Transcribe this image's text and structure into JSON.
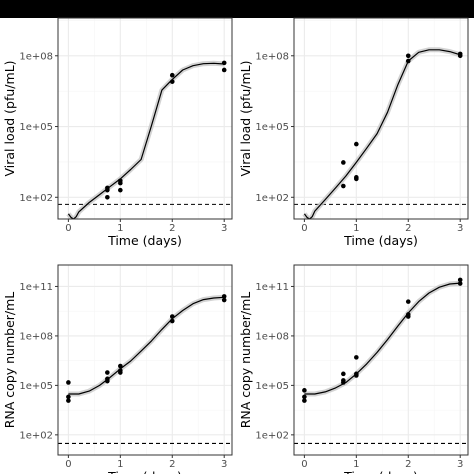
{
  "colors": {
    "top_bar": "#000000",
    "panel_background": "#ffffff",
    "grid_major": "#ebebeb",
    "grid_minor": "#f5f5f5",
    "panel_border": "#333333",
    "points": "#000000",
    "fit_line": "#000000",
    "ribbon": "#c8c8c8",
    "threshold": "#000000"
  },
  "chart_data": [
    {
      "type": "scatter",
      "xlabel": "Time (days)",
      "ylabel": "Viral load (pfu/mL)",
      "log_y": true,
      "xlim": [
        -0.2,
        3.15
      ],
      "ylim": [
        12,
        4000000000.0
      ],
      "x_ticks": [
        0,
        1,
        2,
        3
      ],
      "y_ticks": [
        {
          "value": 100,
          "label": "1e+02"
        },
        {
          "value": 100000,
          "label": "1e+05"
        },
        {
          "value": 100000000,
          "label": "1e+08"
        }
      ],
      "grid": true,
      "threshold": 50,
      "points": [
        [
          0.75,
          250
        ],
        [
          0.75,
          200
        ],
        [
          0.75,
          100
        ],
        [
          1.0,
          500
        ],
        [
          1.0,
          400
        ],
        [
          1.0,
          200
        ],
        [
          2.0,
          15000000.0
        ],
        [
          2.0,
          8000000.0
        ],
        [
          3.0,
          50000000.0
        ],
        [
          3.0,
          25000000.0
        ]
      ],
      "fit": [
        [
          0.0,
          20
        ],
        [
          0.05,
          14
        ],
        [
          0.1,
          12
        ],
        [
          0.15,
          15
        ],
        [
          0.2,
          24
        ],
        [
          0.4,
          60
        ],
        [
          0.6,
          130
        ],
        [
          0.8,
          280
        ],
        [
          1.0,
          600
        ],
        [
          1.2,
          1500
        ],
        [
          1.4,
          4000
        ],
        [
          1.6,
          110000.0
        ],
        [
          1.8,
          3500000.0
        ],
        [
          2.0,
          10000000.0
        ],
        [
          2.2,
          25000000.0
        ],
        [
          2.4,
          38000000.0
        ],
        [
          2.6,
          46000000.0
        ],
        [
          2.8,
          48000000.0
        ],
        [
          3.0,
          45000000.0
        ]
      ]
    },
    {
      "type": "scatter",
      "xlabel": "Time (days)",
      "ylabel": "Viral load (pfu/mL)",
      "log_y": true,
      "xlim": [
        -0.2,
        3.15
      ],
      "ylim": [
        12,
        4000000000.0
      ],
      "x_ticks": [
        0,
        1,
        2,
        3
      ],
      "y_ticks": [
        {
          "value": 100,
          "label": "1e+02"
        },
        {
          "value": 100000,
          "label": "1e+05"
        },
        {
          "value": 100000000,
          "label": "1e+08"
        }
      ],
      "grid": true,
      "threshold": 50,
      "points": [
        [
          0.75,
          3000
        ],
        [
          0.75,
          300
        ],
        [
          1.0,
          18000
        ],
        [
          1.0,
          700
        ],
        [
          1.0,
          600
        ],
        [
          2.0,
          100000000.0
        ],
        [
          2.0,
          60000000.0
        ],
        [
          3.0,
          120000000.0
        ],
        [
          3.0,
          100000000.0
        ]
      ],
      "fit": [
        [
          0.0,
          20
        ],
        [
          0.05,
          14
        ],
        [
          0.1,
          12
        ],
        [
          0.15,
          15
        ],
        [
          0.2,
          26
        ],
        [
          0.4,
          80
        ],
        [
          0.6,
          250
        ],
        [
          0.8,
          800
        ],
        [
          1.0,
          3000
        ],
        [
          1.2,
          12000.0
        ],
        [
          1.4,
          50000.0
        ],
        [
          1.6,
          400000.0
        ],
        [
          1.8,
          6000000.0
        ],
        [
          2.0,
          60000000.0
        ],
        [
          2.2,
          140000000.0
        ],
        [
          2.4,
          180000000.0
        ],
        [
          2.6,
          180000000.0
        ],
        [
          2.8,
          150000000.0
        ],
        [
          3.0,
          110000000.0
        ]
      ]
    },
    {
      "type": "scatter",
      "xlabel": "Time (days)",
      "ylabel": "RNA copy number/mL",
      "log_y": true,
      "xlim": [
        -0.2,
        3.15
      ],
      "ylim": [
        6,
        2000000000000.0
      ],
      "x_ticks": [
        0,
        1,
        2,
        3
      ],
      "y_ticks": [
        {
          "value": 100,
          "label": "1e+02"
        },
        {
          "value": 100000,
          "label": "1e+05"
        },
        {
          "value": 100000000,
          "label": "1e+08"
        },
        {
          "value": 100000000000,
          "label": "1e+11"
        }
      ],
      "grid": true,
      "threshold": 30,
      "points": [
        [
          0.0,
          150000
        ],
        [
          0.0,
          20000
        ],
        [
          0.0,
          12000
        ],
        [
          0.75,
          600000
        ],
        [
          0.75,
          250000
        ],
        [
          0.75,
          180000
        ],
        [
          1.0,
          1500000
        ],
        [
          1.0,
          800000
        ],
        [
          1.0,
          600000
        ],
        [
          2.0,
          1500000000.0
        ],
        [
          2.0,
          800000000.0
        ],
        [
          3.0,
          25000000000.0
        ],
        [
          3.0,
          15000000000.0
        ]
      ],
      "fit": [
        [
          0.0,
          30000
        ],
        [
          0.2,
          30000
        ],
        [
          0.4,
          45000
        ],
        [
          0.6,
          100000
        ],
        [
          0.8,
          300000
        ],
        [
          1.0,
          1000000
        ],
        [
          1.2,
          3000000
        ],
        [
          1.4,
          12000000.0
        ],
        [
          1.6,
          50000000.0
        ],
        [
          1.8,
          250000000.0
        ],
        [
          2.0,
          1100000000.0
        ],
        [
          2.2,
          3500000000.0
        ],
        [
          2.4,
          9000000000.0
        ],
        [
          2.6,
          16000000000.0
        ],
        [
          2.8,
          20000000000.0
        ],
        [
          3.0,
          22000000000.0
        ]
      ]
    },
    {
      "type": "scatter",
      "xlabel": "Time (days)",
      "ylabel": "RNA copy number/mL",
      "log_y": true,
      "xlim": [
        -0.2,
        3.15
      ],
      "ylim": [
        6,
        2000000000000.0
      ],
      "x_ticks": [
        0,
        1,
        2,
        3
      ],
      "y_ticks": [
        {
          "value": 100,
          "label": "1e+02"
        },
        {
          "value": 100000,
          "label": "1e+05"
        },
        {
          "value": 100000000,
          "label": "1e+08"
        },
        {
          "value": 100000000000,
          "label": "1e+11"
        }
      ],
      "grid": true,
      "threshold": 30,
      "points": [
        [
          0.0,
          50000
        ],
        [
          0.0,
          20000
        ],
        [
          0.0,
          12000
        ],
        [
          0.75,
          500000
        ],
        [
          0.75,
          200000
        ],
        [
          0.75,
          150000
        ],
        [
          1.0,
          5000000
        ],
        [
          1.0,
          500000
        ],
        [
          1.0,
          400000
        ],
        [
          2.0,
          12000000000.0
        ],
        [
          2.0,
          2000000000.0
        ],
        [
          2.0,
          1500000000.0
        ],
        [
          3.0,
          250000000000.0
        ],
        [
          3.0,
          150000000000.0
        ]
      ],
      "fit": [
        [
          0.0,
          30000
        ],
        [
          0.2,
          30000
        ],
        [
          0.4,
          40000
        ],
        [
          0.6,
          70000
        ],
        [
          0.8,
          150000
        ],
        [
          1.0,
          500000
        ],
        [
          1.2,
          2000000
        ],
        [
          1.4,
          10000000.0
        ],
        [
          1.6,
          60000000.0
        ],
        [
          1.8,
          400000000.0
        ],
        [
          2.0,
          2500000000.0
        ],
        [
          2.2,
          12000000000.0
        ],
        [
          2.4,
          40000000000.0
        ],
        [
          2.6,
          90000000000.0
        ],
        [
          2.8,
          140000000000.0
        ],
        [
          3.0,
          160000000000.0
        ]
      ]
    }
  ]
}
